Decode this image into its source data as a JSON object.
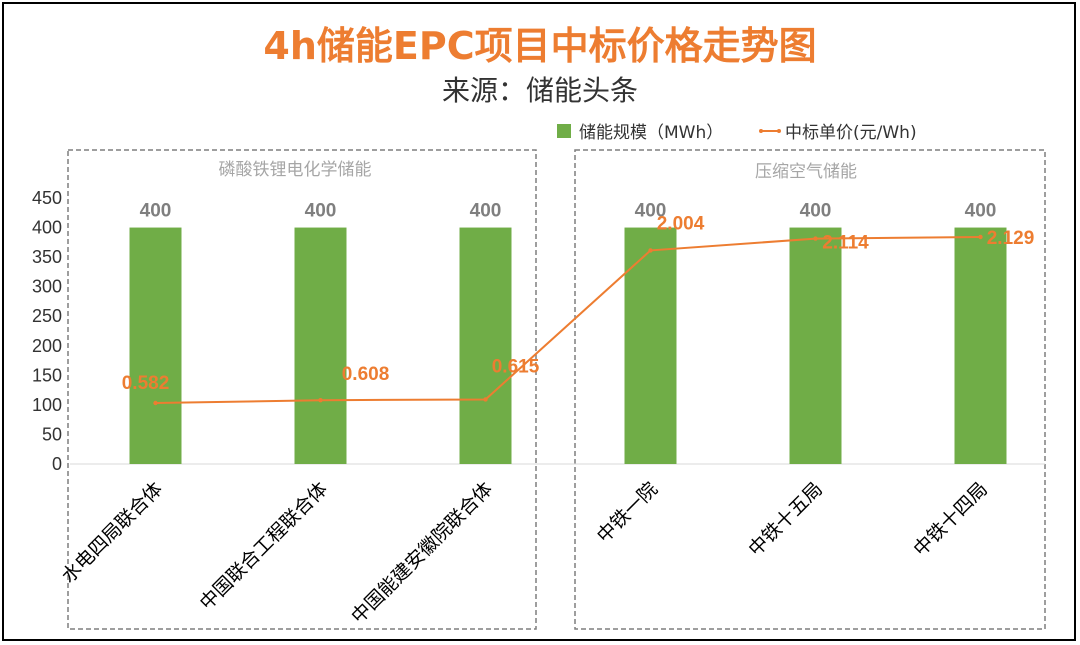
{
  "title": "4h储能EPC项目中标价格走势图",
  "subtitle": "来源：储能头条",
  "colors": {
    "title": "#ED7D31",
    "bar": "#70AD47",
    "line": "#ED7D31",
    "bar_label": "#7F7F7F",
    "group_label": "#A6A6A6"
  },
  "groups": [
    {
      "label": "磷酸铁锂电化学储能",
      "categories": [
        0,
        2
      ]
    },
    {
      "label": "压缩空气储能",
      "categories": [
        3,
        5
      ]
    }
  ],
  "chart_data": {
    "type": "bar",
    "categories": [
      "水电四局联合体",
      "中国联合工程联合体",
      "中国能建安徽院联合体",
      "中铁一院",
      "中铁十五局",
      "中铁十四局"
    ],
    "series": [
      {
        "name": "储能规模（MWh）",
        "type": "bar",
        "axis": "primary",
        "values": [
          400,
          400,
          400,
          400,
          400,
          400
        ],
        "data_labels": [
          "400",
          "400",
          "400",
          "400",
          "400",
          "400"
        ]
      },
      {
        "name": "中标单价(元/Wh)",
        "type": "line",
        "axis": "secondary",
        "values": [
          0.582,
          0.608,
          0.615,
          2.004,
          2.114,
          2.129
        ],
        "data_labels": [
          "0.582",
          "0.608",
          "0.615",
          "2.004",
          "2.114",
          "2.129"
        ]
      }
    ],
    "y_ticks": [
      "0",
      "50",
      "100",
      "150",
      "200",
      "250",
      "300",
      "350",
      "400",
      "450"
    ],
    "ylim": [
      0,
      450
    ],
    "y2lim": [
      0,
      2.5
    ],
    "legend_position": "top-right",
    "grid": false
  }
}
